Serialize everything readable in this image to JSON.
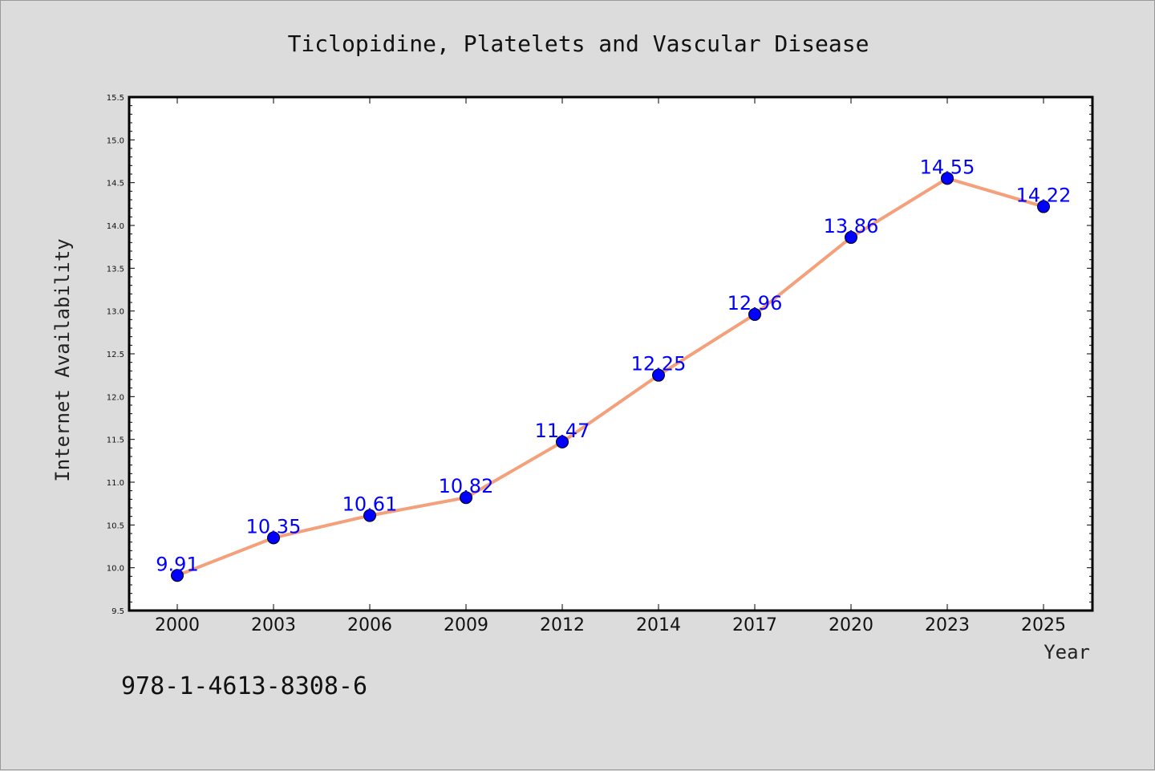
{
  "chart_data": {
    "type": "line",
    "title": "Ticlopidine, Platelets and Vascular Disease",
    "xlabel": "Year",
    "ylabel": "Internet Availability",
    "categories": [
      "2000",
      "2003",
      "2006",
      "2009",
      "2012",
      "2014",
      "2017",
      "2020",
      "2023",
      "2025"
    ],
    "series": [
      {
        "values": [
          9.91,
          10.35,
          10.61,
          10.82,
          11.47,
          12.25,
          12.96,
          13.86,
          14.55,
          14.22
        ],
        "labels": [
          "9.91",
          "10.35",
          "10.61",
          "10.82",
          "11.47",
          "12.25",
          "12.96",
          "13.86",
          "14.55",
          "14.22"
        ],
        "line_color": "#f4a07a",
        "marker_color": "#0000ff"
      }
    ],
    "ylim": [
      9.5,
      15.5
    ],
    "yticks": [
      "9.5",
      "10.0",
      "10.5",
      "11.0",
      "11.5",
      "12.0",
      "12.5",
      "13.0",
      "13.5",
      "14.0",
      "14.5",
      "15.0",
      "15.5"
    ],
    "grid": false,
    "legend": "none"
  },
  "annotation": "978-1-4613-8308-6"
}
